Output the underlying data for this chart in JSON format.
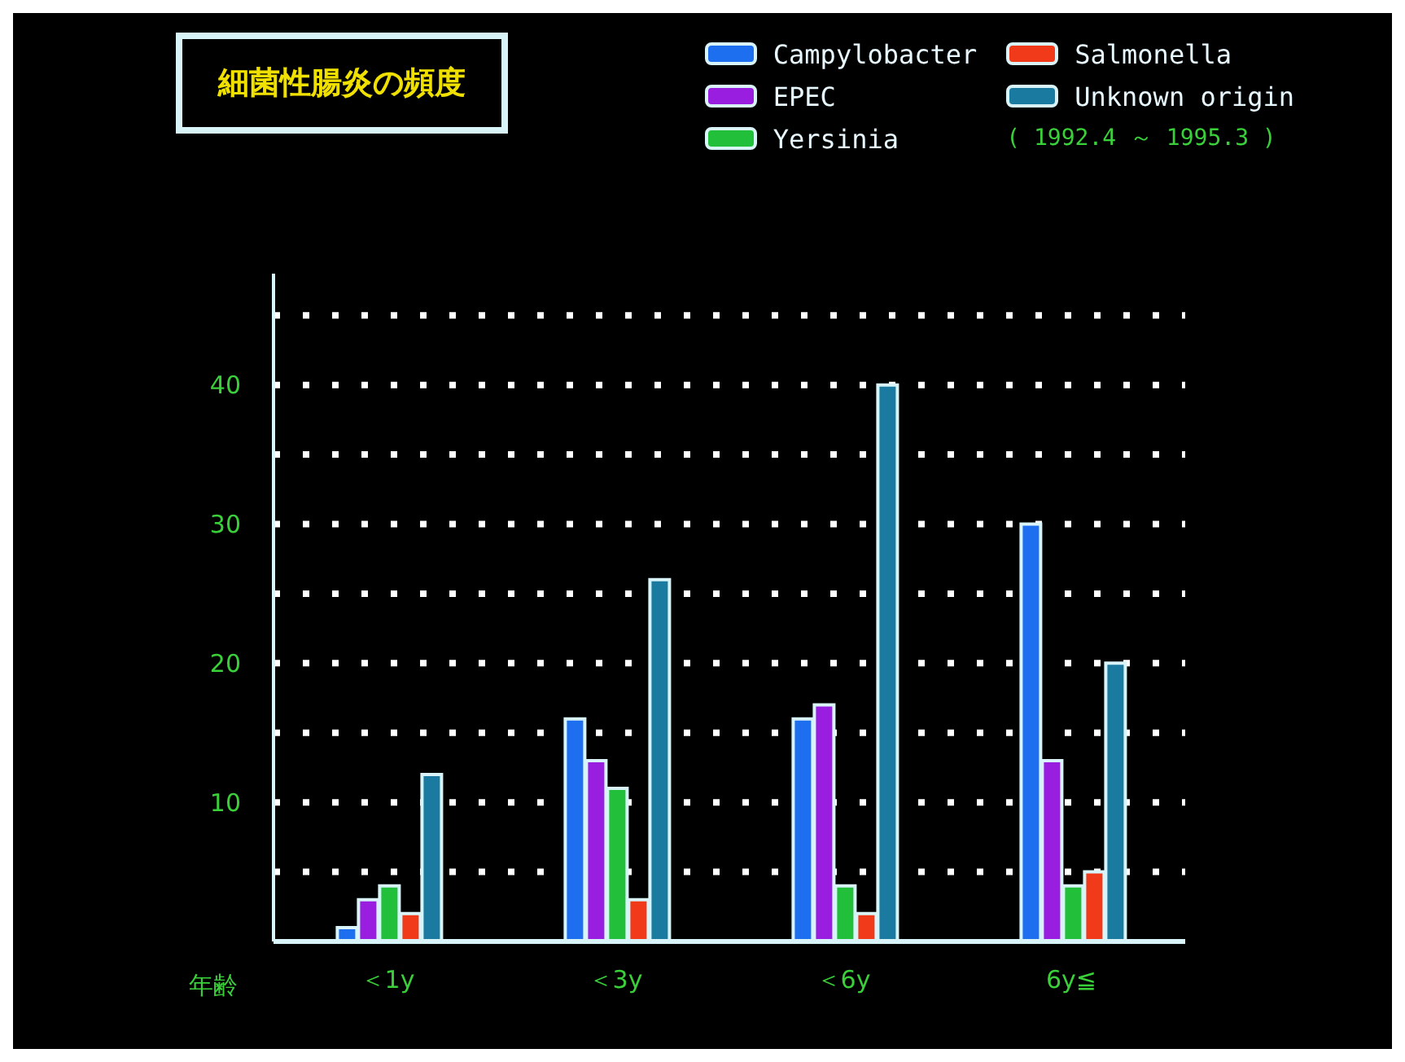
{
  "chart_data": {
    "type": "bar",
    "title": "細菌性腸炎の頻度",
    "subtitle": "( 1992.4 ～ 1995.3 )",
    "xlabel": "年齢",
    "categories": [
      "＜1y",
      "＜3y",
      "＜6y",
      "6y≦"
    ],
    "series": [
      {
        "name": "Campylobacter",
        "color": "#1e6ef0",
        "values": [
          1,
          16,
          16,
          30
        ]
      },
      {
        "name": "EPEC",
        "color": "#9a1ee0",
        "values": [
          3,
          13,
          17,
          13
        ]
      },
      {
        "name": "Yersinia",
        "color": "#22c03a",
        "values": [
          4,
          11,
          4,
          4
        ]
      },
      {
        "name": "Salmonella",
        "color": "#f03a1a",
        "values": [
          2,
          3,
          2,
          5
        ]
      },
      {
        "name": "Unknown origin",
        "color": "#1a7aa0",
        "values": [
          12,
          26,
          40,
          20
        ]
      }
    ],
    "ylim": [
      0,
      48
    ],
    "yticks": [
      {
        "value": 5,
        "label": null
      },
      10,
      {
        "value": 15,
        "label": null
      },
      20,
      {
        "value": 25,
        "label": null
      },
      30,
      {
        "value": 35,
        "label": null
      },
      40,
      {
        "value": 45,
        "label": null
      }
    ],
    "grid": "y",
    "legend": "top right"
  }
}
